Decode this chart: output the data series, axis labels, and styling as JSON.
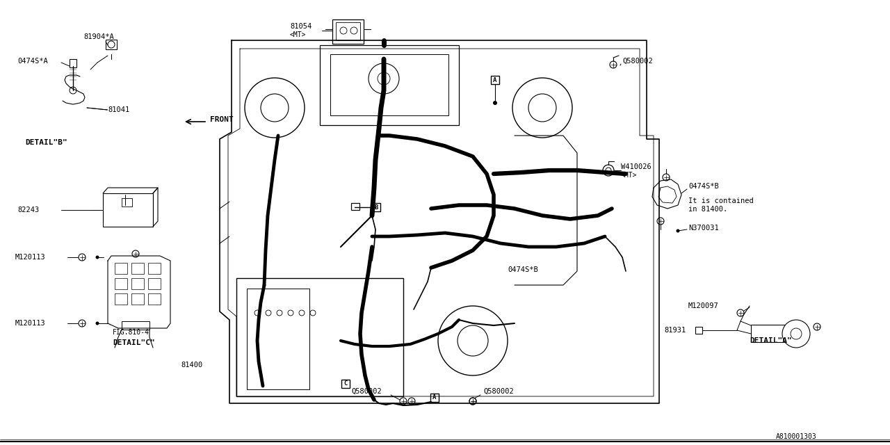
{
  "bg_color": "#ffffff",
  "line_color": "#000000",
  "fig_width": 12.8,
  "fig_height": 6.4,
  "part_number": "A810001303",
  "labels": {
    "front_arrow": "FRONT",
    "detail_a": "DETAIL\"A\"",
    "detail_b": "DETAIL\"B\"",
    "detail_c": "DETAIL\"C\"",
    "fig_810_4": "FIG.810-4",
    "it_is_contained": "It is contained\nin 81400.",
    "label_81904": "81904*A",
    "label_0474sA": "0474S*A",
    "label_81041": "81041",
    "label_82243": "82243",
    "label_M120113_top": "M120113",
    "label_M120113_bot": "M120113",
    "label_81400": "81400",
    "label_81054": "81054",
    "label_81054_mt": "<MT>",
    "label_Q580002_tr": "Q580002",
    "label_W410026": "W410026",
    "label_W410026_mt": "<MT>",
    "label_0474sB_tr": "0474S*B",
    "label_N370031": "N370031",
    "label_0474sB_mid": "0474S*B",
    "label_M120097": "M120097",
    "label_81931": "81931",
    "label_Q580002_bl": "Q580002",
    "label_Q580002_br": "Q580002",
    "label_A": "A",
    "label_B": "B",
    "label_C": "C"
  }
}
